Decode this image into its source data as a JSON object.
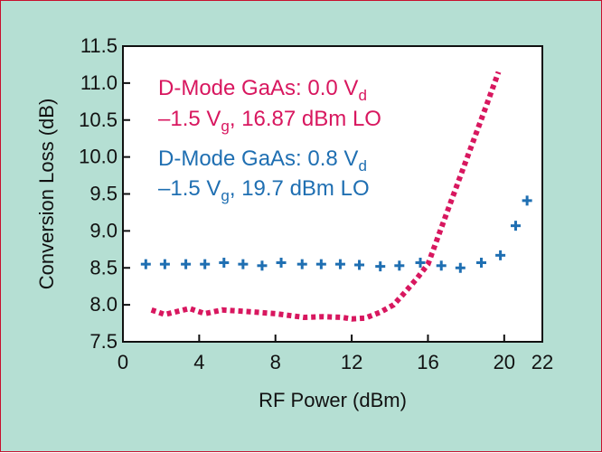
{
  "chart_data": {
    "type": "line",
    "title": "",
    "xlabel": "RF Power (dBm)",
    "ylabel": "Conversion Loss (dB)",
    "xlim": [
      0,
      22
    ],
    "ylim": [
      7.5,
      11.5
    ],
    "x_ticks": [
      0,
      4,
      8,
      12,
      16,
      20,
      22
    ],
    "x_tick_labels": [
      "0",
      "4",
      "8",
      "12",
      "16",
      "20",
      "22"
    ],
    "y_ticks": [
      7.5,
      8.0,
      8.5,
      9.0,
      9.5,
      10.0,
      10.5,
      11.0,
      11.5
    ],
    "y_tick_labels": [
      "7.5",
      "8.0",
      "8.5",
      "9.0",
      "9.5",
      "10.0",
      "10.5",
      "11.0",
      "11.5"
    ],
    "grid": false,
    "legend_placement": "upper-left (inside plot)",
    "series": [
      {
        "style": "dotted-line",
        "color": "#d8175f",
        "legend_lines": [
          {
            "text": "D-Mode GaAs: 0.0 V",
            "sub": "d"
          },
          {
            "text": "–1.5 V",
            "sub": "g",
            "tail": ", 16.87 dBm LO"
          }
        ],
        "x": [
          1.5,
          2.2,
          3.0,
          3.5,
          4.3,
          5.2,
          6.5,
          8.0,
          9.5,
          10.5,
          11.5,
          12.0,
          12.7,
          13.5,
          14.2,
          14.8,
          15.4,
          16.0,
          17.0,
          18.0,
          19.0,
          19.7
        ],
        "y": [
          7.93,
          7.87,
          7.92,
          7.95,
          7.88,
          7.93,
          7.91,
          7.88,
          7.83,
          7.84,
          7.83,
          7.81,
          7.82,
          7.9,
          8.0,
          8.17,
          8.35,
          8.55,
          9.25,
          9.95,
          10.65,
          11.15
        ]
      },
      {
        "style": "plus-markers",
        "color": "#1f6fb2",
        "legend_lines": [
          {
            "text": "D-Mode GaAs: 0.8 V",
            "sub": "d"
          },
          {
            "text": "–1.5 V",
            "sub": "g",
            "tail": ", 19.7 dBm LO"
          }
        ],
        "x": [
          1.2,
          2.2,
          3.3,
          4.3,
          5.3,
          6.3,
          7.3,
          8.3,
          9.4,
          10.4,
          11.4,
          12.4,
          13.5,
          14.5,
          15.6,
          16.7,
          17.7,
          18.8,
          19.8,
          20.6,
          21.2
        ],
        "y": [
          8.55,
          8.55,
          8.55,
          8.55,
          8.57,
          8.55,
          8.53,
          8.57,
          8.55,
          8.55,
          8.55,
          8.54,
          8.52,
          8.53,
          8.57,
          8.53,
          8.5,
          8.57,
          8.67,
          9.07,
          9.41
        ]
      }
    ]
  }
}
